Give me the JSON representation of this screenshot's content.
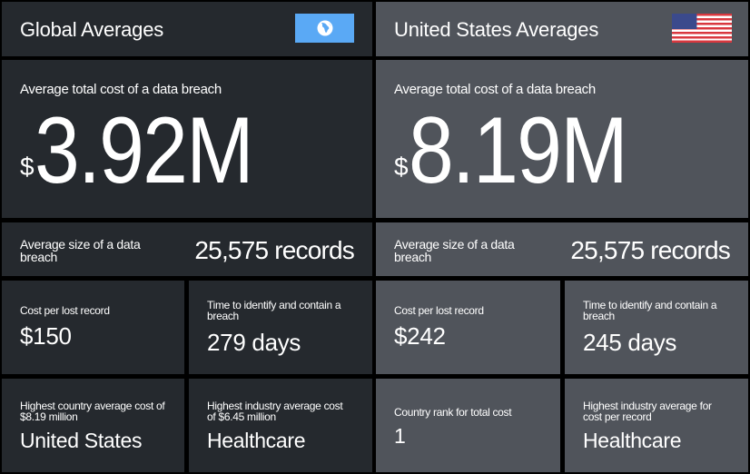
{
  "global": {
    "title": "Global Averages",
    "icon": "globe-icon",
    "accent": "#5aa9f5",
    "total_cost_label": "Average total cost of a data breach",
    "total_cost_currency": "$",
    "total_cost_value": "3.92M",
    "size_label": "Average size of a data breach",
    "size_value": "25,575 records",
    "cost_per_record_label": "Cost per lost record",
    "cost_per_record_value": "$150",
    "time_label": "Time to identify and contain a breach",
    "time_value": "279 days",
    "highest_country_label": "Highest country average cost of $8.19 million",
    "highest_country_value": "United States",
    "highest_industry_label": "Highest industry average cost of $6.45 million",
    "highest_industry_value": "Healthcare"
  },
  "us": {
    "title": "United States Averages",
    "icon": "us-flag-icon",
    "total_cost_label": "Average total cost of a data breach",
    "total_cost_currency": "$",
    "total_cost_value": "8.19M",
    "size_label": "Average size of a data breach",
    "size_value": "25,575 records",
    "cost_per_record_label": "Cost per lost record",
    "cost_per_record_value": "$242",
    "time_label": "Time to identify and contain a breach",
    "time_value": "245 days",
    "rank_label": "Country rank for total cost",
    "rank_value": "1",
    "highest_industry_label": "Highest industry average for cost per record",
    "highest_industry_value": "Healthcare"
  },
  "colors": {
    "global_bg": "#25292e",
    "us_bg": "#50545b"
  }
}
